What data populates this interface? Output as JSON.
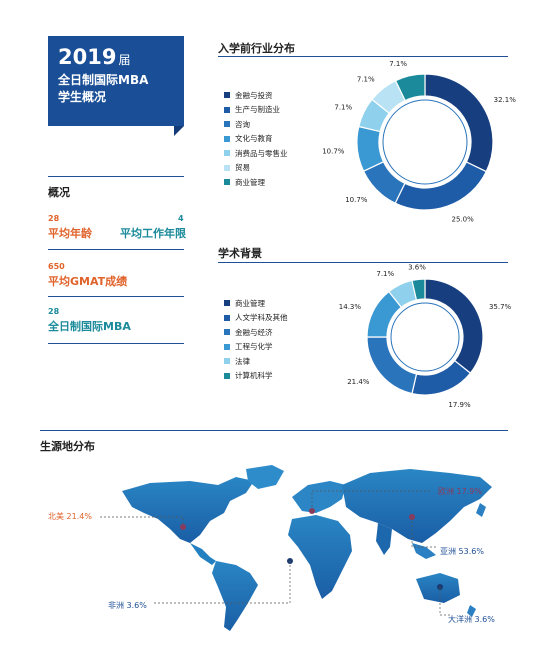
{
  "header": {
    "year": "2019",
    "year_suffix": "届",
    "line1": "全日制国际MBA",
    "line2": "学生概况"
  },
  "overview": {
    "title": "概况",
    "avg_age_value": "28",
    "avg_age_label": "平均年龄",
    "avg_work_value": "4",
    "avg_work_label": "平均工作年限",
    "gmat_value": "650",
    "gmat_label": "平均GMAT成绩",
    "count_value": "28",
    "count_label": "全日制国际MBA"
  },
  "colors": {
    "navy": "#173f80",
    "blue": "#1f5ca8",
    "mid": "#2f86c7",
    "light": "#5db8e3",
    "pale": "#9fd6ee",
    "teal": "#1b8a9a",
    "orange": "#e0632b",
    "region": "#8a3a5c"
  },
  "chart_data": [
    {
      "type": "pie",
      "title": "入学前行业分布",
      "categories": [
        "金融与投资",
        "生产与制造业",
        "咨询",
        "文化与教育",
        "消费品与零售业",
        "贸易",
        "商业管理"
      ],
      "values": [
        32.1,
        25.0,
        10.7,
        10.7,
        7.1,
        7.1,
        7.1
      ],
      "value_labels": [
        "32.1%",
        "25.0%",
        "10.7%",
        "10.7%",
        "7.1%",
        "7.1%",
        "7.1%"
      ],
      "colors": [
        "#173f80",
        "#1f5ca8",
        "#2a74bb",
        "#3a98d3",
        "#8fd0ec",
        "#b9e3f4",
        "#1b8a9a"
      ],
      "legend_position": "left"
    },
    {
      "type": "pie",
      "title": "学术背景",
      "categories": [
        "商业管理",
        "人文学科及其他",
        "金融与经济",
        "工程与化学",
        "法律",
        "计算机科学"
      ],
      "values": [
        35.7,
        17.9,
        21.4,
        14.3,
        7.1,
        3.6
      ],
      "value_labels": [
        "35.7%",
        "17.9%",
        "21.4%",
        "14.3%",
        "7.1%",
        "3.6%"
      ],
      "colors": [
        "#173f80",
        "#1f5ca8",
        "#2a74bb",
        "#3a98d3",
        "#8fd0ec",
        "#1b8a9a"
      ],
      "legend_position": "left"
    }
  ],
  "origin": {
    "title": "生源地分布",
    "north_america": "北美 21.4%",
    "europe": "欧洲 17.9%",
    "asia": "亚洲 53.6%",
    "africa": "非洲 3.6%",
    "oceania": "大洋洲 3.6%"
  }
}
